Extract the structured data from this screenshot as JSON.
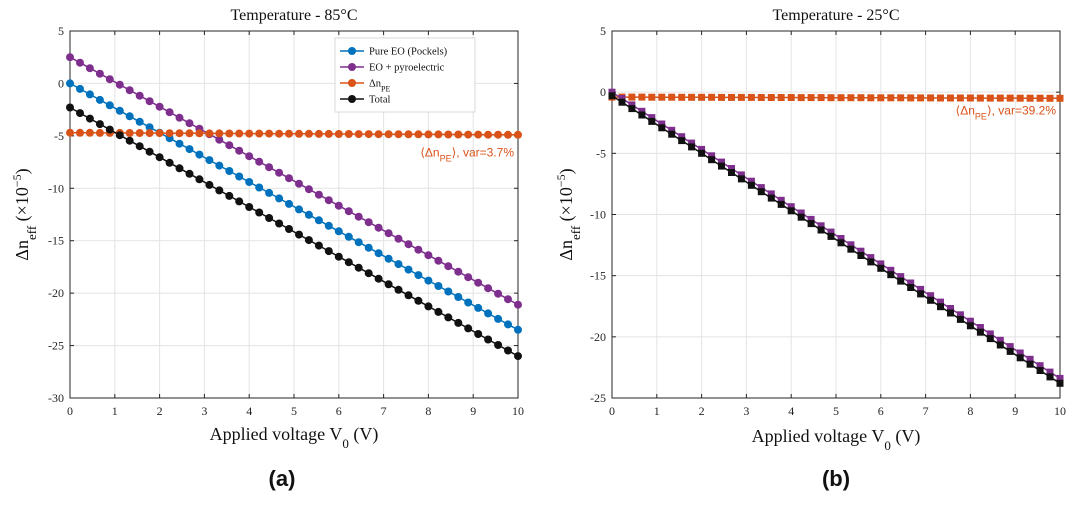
{
  "chart_data": [
    {
      "panel_label": "(a)",
      "type": "line",
      "title": "Temperature  -  85°C",
      "xlabel_main": "Applied voltage V",
      "xlabel_sub": "0",
      "xlabel_unit": " (V)",
      "ylabel_main": "Δn",
      "ylabel_sub": "eff",
      "ylabel_mid": " (×10",
      "ylabel_sup": "−5",
      "ylabel_end": ")",
      "xlim": [
        0,
        10
      ],
      "ylim": [
        -30,
        5
      ],
      "xticks": [
        0,
        1,
        2,
        3,
        4,
        5,
        6,
        7,
        8,
        9,
        10
      ],
      "yticks": [
        5,
        0,
        -5,
        -10,
        -15,
        -20,
        -25,
        -30
      ],
      "grid": true,
      "legend_placement": "top-right",
      "annotation": {
        "pre": "⟨Δn",
        "sub": "PE",
        "post": "⟩, var=3.7%",
        "x": 10,
        "y": -6.6,
        "color": "#D95319"
      },
      "x_points": 46,
      "series": [
        {
          "name": "Pure EO (Pockels)",
          "name_sub": "",
          "color": "#0072BD",
          "marker": "circle",
          "start": 0.0,
          "end": -23.5
        },
        {
          "name": "EO + pyroelectric",
          "name_sub": "",
          "color": "#7E2F8E",
          "marker": "circle",
          "start": 2.5,
          "end": -21.1
        },
        {
          "name": "Δn",
          "name_sub": "PE",
          "color": "#D95319",
          "marker": "circle",
          "start": -4.7,
          "end": -4.9
        },
        {
          "name": "Total",
          "name_sub": "",
          "color": "#111111",
          "marker": "circle",
          "start": -2.3,
          "end": -26.0
        }
      ]
    },
    {
      "panel_label": "(b)",
      "type": "line",
      "title": "Temperature  -  25°C",
      "xlabel_main": "Applied voltage V",
      "xlabel_sub": "0",
      "xlabel_unit": " (V)",
      "ylabel_main": "Δn",
      "ylabel_sub": "eff",
      "ylabel_mid": " (×10",
      "ylabel_sup": "−5",
      "ylabel_end": ")",
      "xlim": [
        0,
        10
      ],
      "ylim": [
        -25,
        5
      ],
      "xticks": [
        0,
        1,
        2,
        3,
        4,
        5,
        6,
        7,
        8,
        9,
        10
      ],
      "yticks": [
        5,
        0,
        -5,
        -10,
        -15,
        -20,
        -25
      ],
      "grid": true,
      "legend_placement": "none",
      "annotation": {
        "pre": "⟨Δn",
        "sub": "PE",
        "post": "⟩, var=39.2%",
        "x": 10,
        "y": -1.5,
        "color": "#D95319"
      },
      "x_points": 46,
      "series": [
        {
          "name": "",
          "color": "#D95319",
          "marker": "square",
          "start": -0.4,
          "end": -0.5
        },
        {
          "name": "",
          "color": "#7E2F8E",
          "marker": "square",
          "start": 0.0,
          "end": -23.4
        },
        {
          "name": "",
          "color": "#111111",
          "marker": "square",
          "start": -0.3,
          "end": -23.8
        }
      ]
    }
  ]
}
